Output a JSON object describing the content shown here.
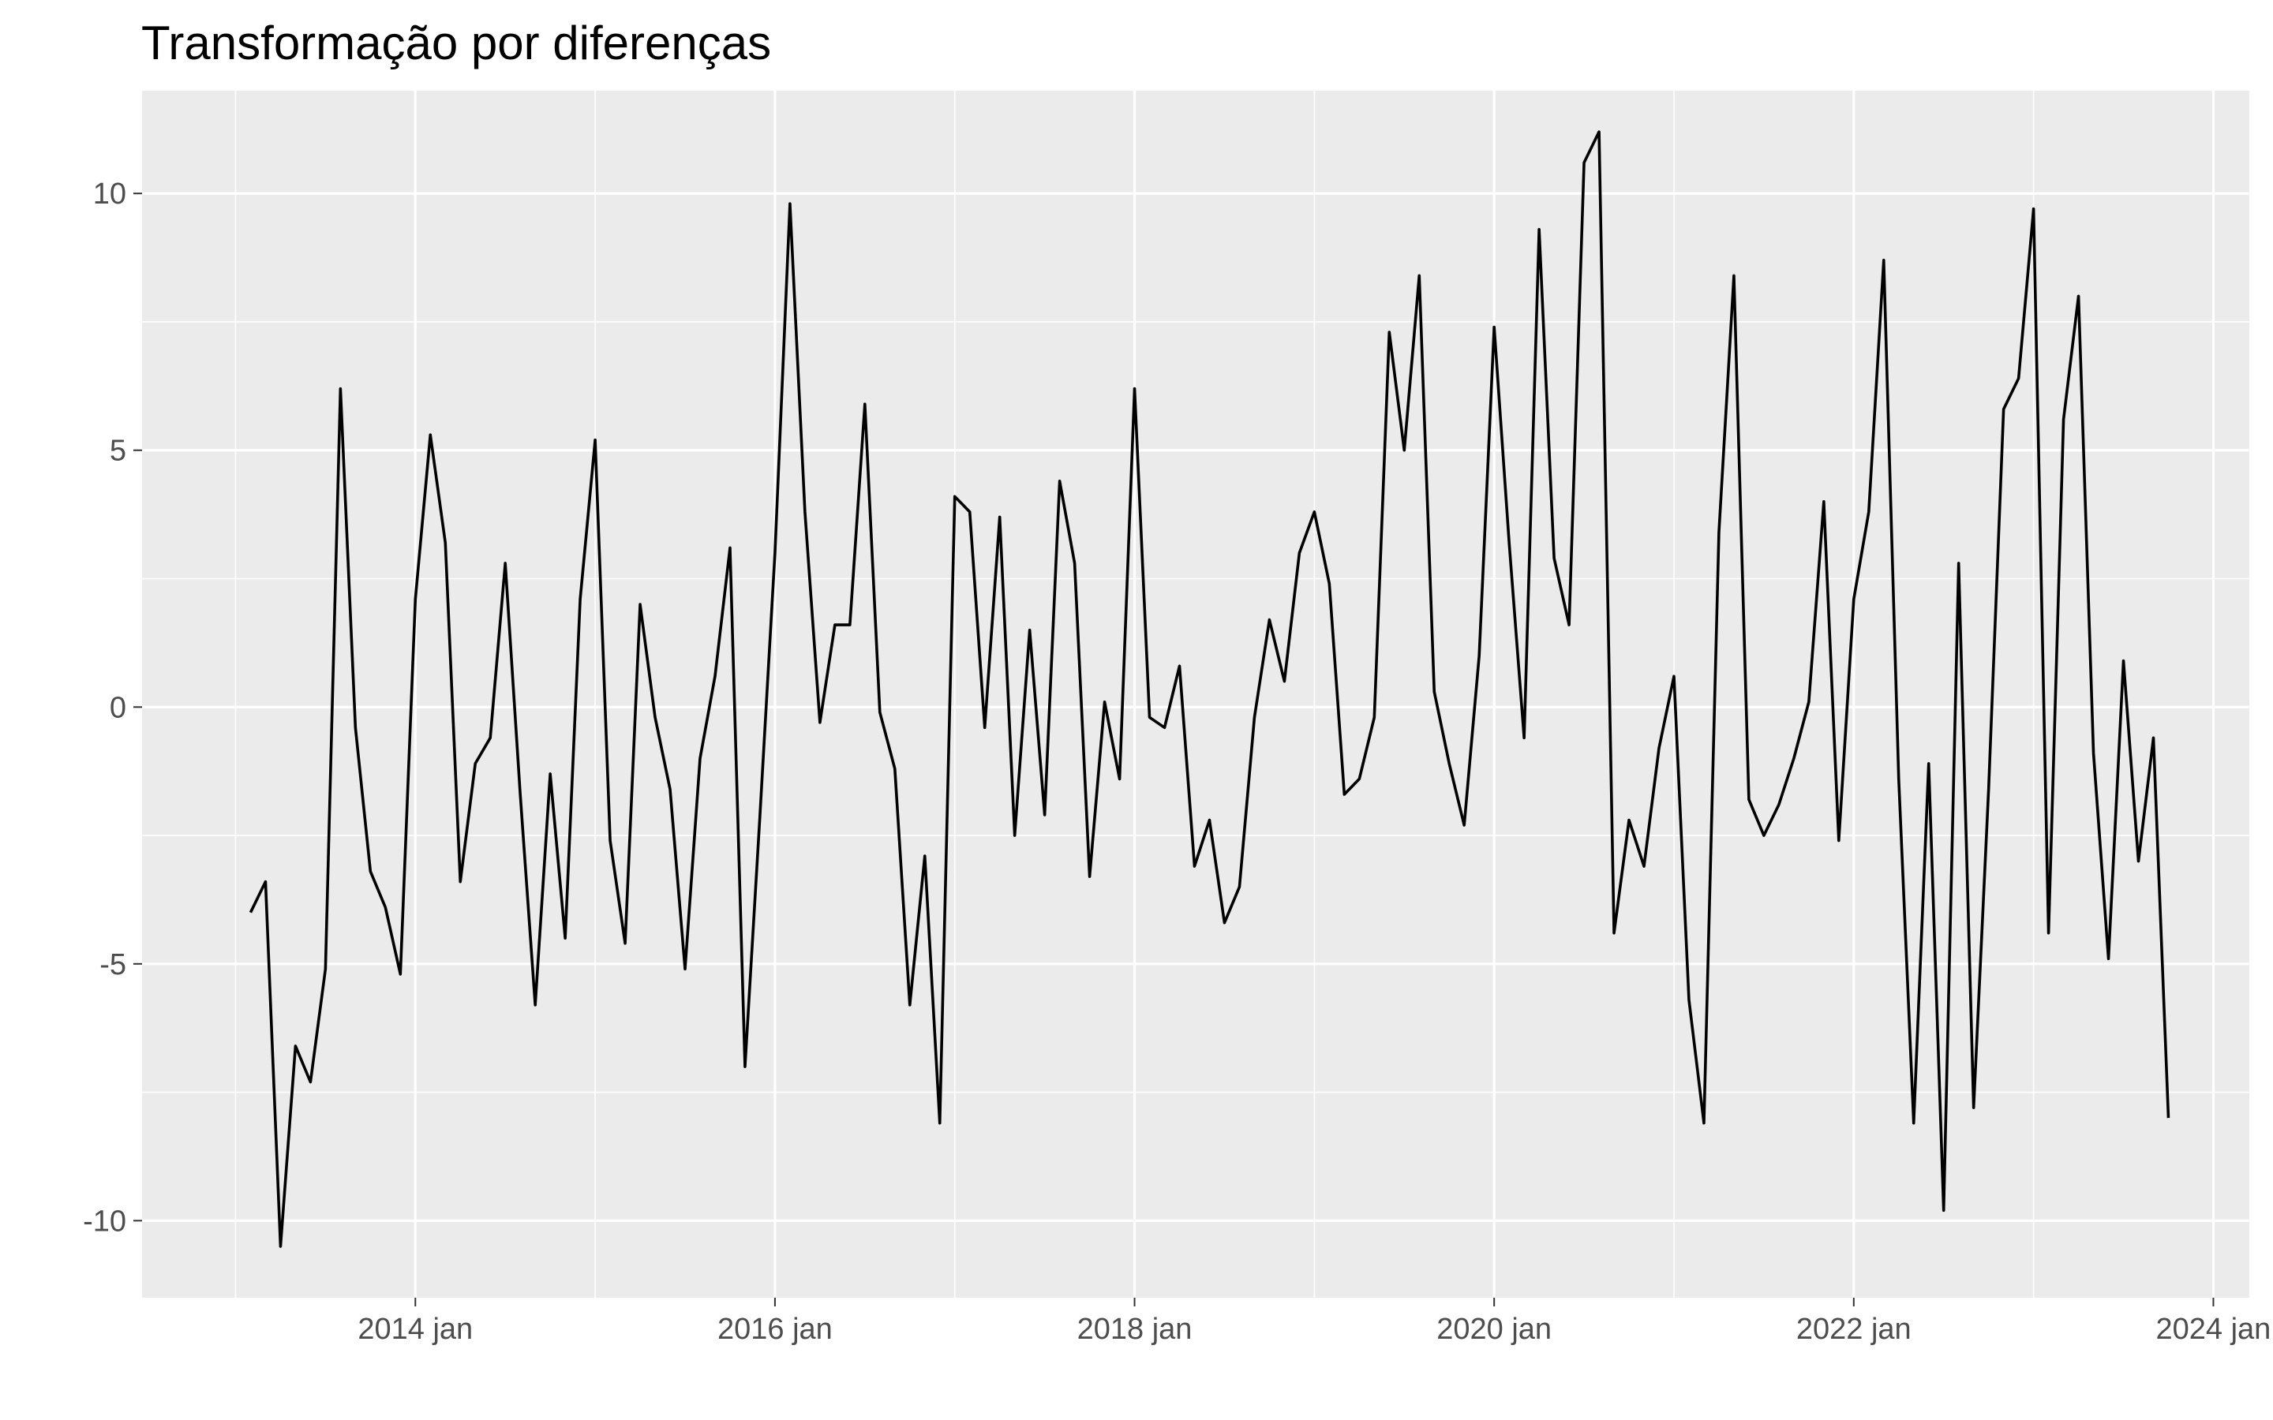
{
  "chart_data": {
    "type": "line",
    "title": "Transformação por diferenças",
    "xlabel": "",
    "ylabel": "",
    "x_start": "2013-02",
    "x_frequency": "monthly",
    "x_ticks": [
      "2014 jan",
      "2016 jan",
      "2018 jan",
      "2020 jan",
      "2022 jan",
      "2024 jan"
    ],
    "y_ticks": [
      "-10",
      "-5",
      "0",
      "5",
      "10"
    ],
    "ylim": [
      -11.5,
      12
    ],
    "grid": true,
    "legend": "none",
    "colors": {
      "panel": "#ebebeb",
      "grid": "#ffffff",
      "line": "#000000",
      "tick_text": "#4d4d4d"
    },
    "series": [
      {
        "values": [
          -4.0,
          -3.4,
          -10.5,
          -6.6,
          -7.3,
          -5.1,
          6.2,
          -0.4,
          -3.2,
          -3.9,
          -5.2,
          2.1,
          5.3,
          3.2,
          -3.4,
          -1.1,
          -0.6,
          2.8,
          -1.7,
          -5.8,
          -1.3,
          -4.5,
          2.1,
          5.2,
          -2.6,
          -4.6,
          2.0,
          -0.2,
          -1.6,
          -5.1,
          -1.0,
          0.6,
          3.1,
          -7.0,
          -2.1,
          3.0,
          9.8,
          3.8,
          -0.3,
          1.6,
          1.6,
          5.9,
          -0.1,
          -1.2,
          -5.8,
          -2.9,
          -8.1,
          4.1,
          3.8,
          -0.4,
          3.7,
          -2.5,
          1.5,
          -2.1,
          4.4,
          2.8,
          -3.3,
          0.1,
          -1.4,
          6.2,
          -0.2,
          -0.4,
          0.8,
          -3.1,
          -2.2,
          -4.2,
          -3.5,
          -0.2,
          1.7,
          0.5,
          3.0,
          3.8,
          2.4,
          -1.7,
          -1.4,
          -0.2,
          7.3,
          5.0,
          8.4,
          0.3,
          -1.1,
          -2.3,
          1.0,
          7.4,
          3.2,
          -0.6,
          9.3,
          2.9,
          1.6,
          10.6,
          11.2,
          -4.4,
          -2.2,
          -3.1,
          -0.8,
          0.6,
          -5.7,
          -8.1,
          3.4,
          8.4,
          -1.8,
          -2.5,
          -1.9,
          -1.0,
          0.1,
          4.0,
          -2.6,
          2.1,
          3.8,
          8.7,
          -1.4,
          -8.1,
          -1.1,
          -9.8,
          2.8,
          -7.8,
          -1.6,
          5.8,
          6.4,
          9.7,
          -4.4,
          5.6,
          8.0,
          -0.9,
          -4.9,
          0.9,
          -3.0,
          -0.6,
          -8.0
        ]
      }
    ]
  }
}
